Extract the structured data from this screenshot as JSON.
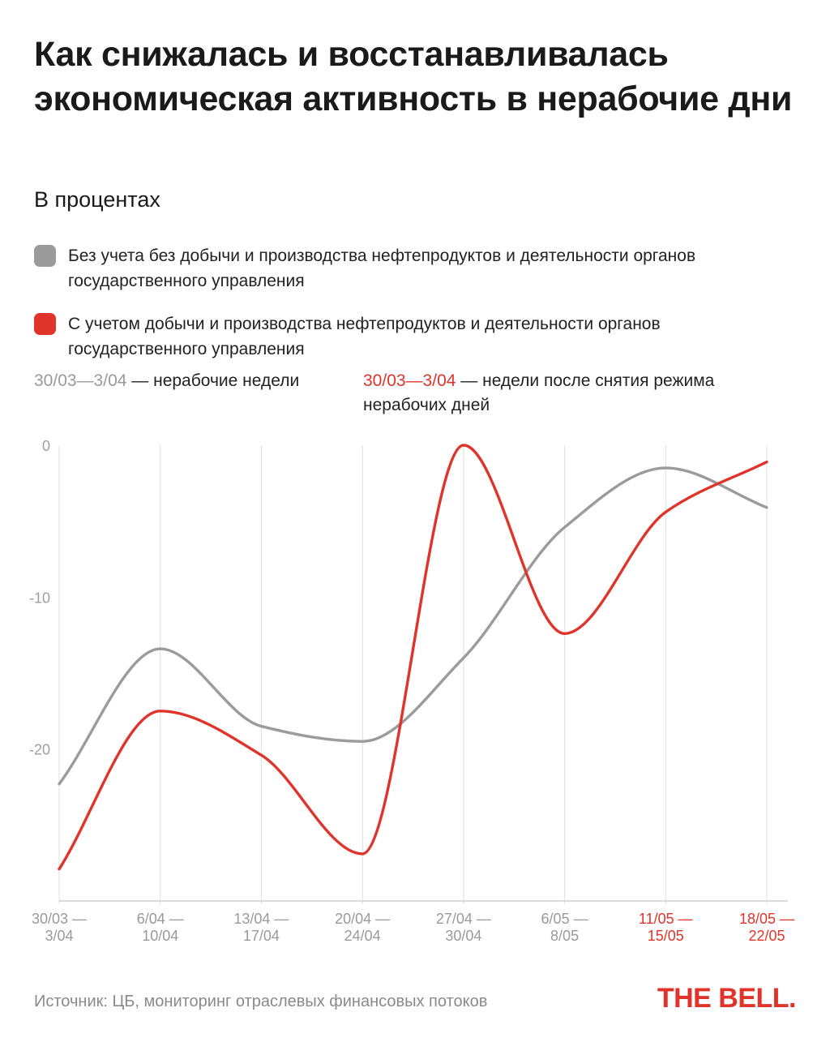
{
  "header": {
    "title": "Как снижалась и восстанавливалась экономическая активность в нерабочие дни",
    "subtitle": "В процентах"
  },
  "legend": [
    {
      "label": "Без учета без добычи и производства нефтепродуктов и деятельности органов государственного управления",
      "color": "#9b9b9b"
    },
    {
      "label": "С учетом добычи и производства нефтепродуктов и деятельности органов государственного управления",
      "color": "#e0342b"
    }
  ],
  "notes": {
    "nonworking": {
      "range": "30/03—3/04",
      "text": " — нерабочие недели"
    },
    "after": {
      "range": "30/03—3/04",
      "text": " — недели после снятия режима нерабочих дней"
    }
  },
  "chart_data": {
    "type": "line",
    "categories": [
      [
        "30/03 —",
        "3/04"
      ],
      [
        "6/04 —",
        "10/04"
      ],
      [
        "13/04 —",
        "17/04"
      ],
      [
        "20/04 —",
        "24/04"
      ],
      [
        "27/04 —",
        "30/04"
      ],
      [
        "6/05 —",
        "8/05"
      ],
      [
        "11/05 —",
        "15/05"
      ],
      [
        "18/05 —",
        "22/05"
      ]
    ],
    "category_colors": [
      "#9a9a9a",
      "#9a9a9a",
      "#9a9a9a",
      "#9a9a9a",
      "#9a9a9a",
      "#9a9a9a",
      "#e0342b",
      "#e0342b"
    ],
    "series": [
      {
        "color": "#9b9b9b",
        "values": [
          -22.3,
          -13.4,
          -18.5,
          -19.5,
          -14.0,
          -5.4,
          -1.5,
          -4.1
        ]
      },
      {
        "color": "#e0342b",
        "values": [
          -27.9,
          -17.5,
          -20.4,
          -26.9,
          0.0,
          -12.4,
          -4.4,
          -1.1
        ]
      }
    ],
    "yticks": [
      0,
      -10,
      -20
    ],
    "ylim": [
      -30,
      0
    ],
    "grid": "vertical"
  },
  "footer": {
    "source": "Источник: ЦБ, мониторинг отраслевых финансовых потоков",
    "brand": "THE BELL."
  }
}
